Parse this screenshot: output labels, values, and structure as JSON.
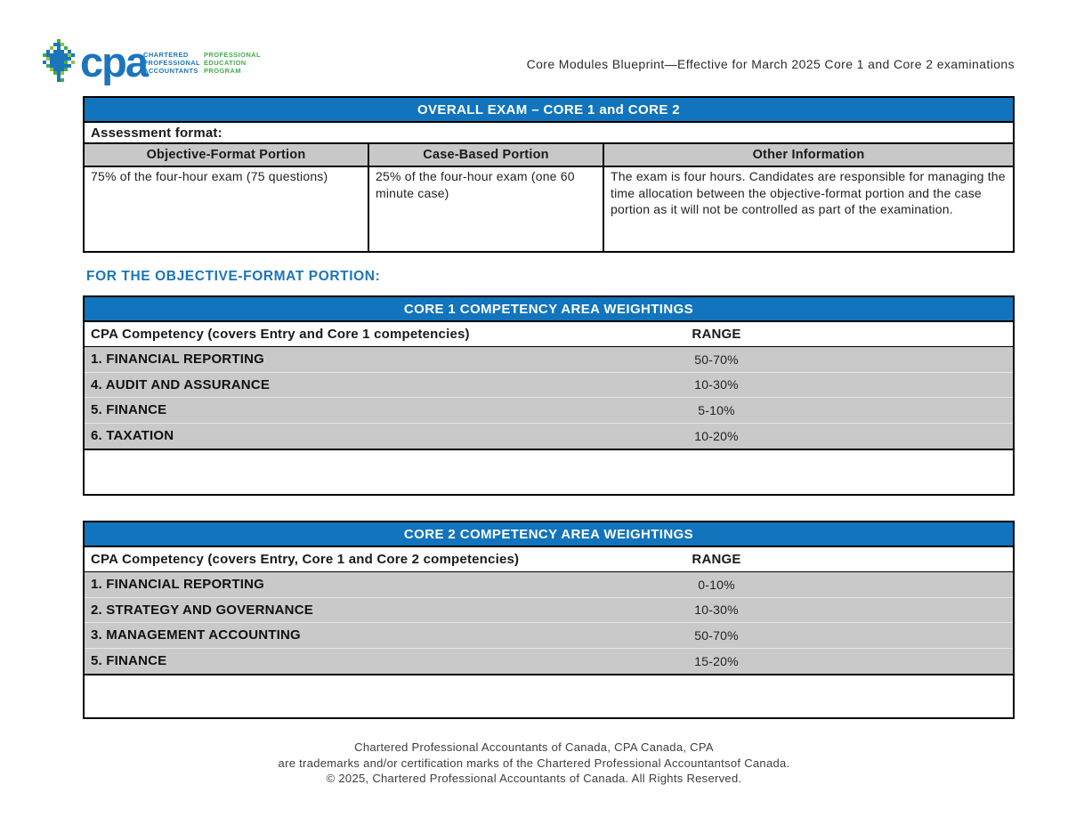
{
  "colors": {
    "header_blue": "#1174bc",
    "heading_text_blue": "#1b75bc",
    "row_gray": "#c9c9c9",
    "column_header_gray": "#c8c8c8",
    "logo_blue": "#1b75bc",
    "logo_green": "#3fae49"
  },
  "logo": {
    "acronym": "cpa",
    "blue_lines": "CHARTERED\nPROFESSIONAL\nACCOUNTANTS",
    "green_lines": "PROFESSIONAL\nEDUCATION\nPROGRAM"
  },
  "header": {
    "title": "Core Modules Blueprint—Effective for March 2025 Core 1 and Core 2 examinations"
  },
  "overall_table": {
    "title": "OVERALL EXAM – CORE 1 and CORE 2",
    "subtitle": "Assessment format:",
    "columns": [
      "Objective-Format Portion",
      "Case-Based Portion",
      "Other Information"
    ],
    "cells": [
      "75% of the four-hour exam (75 questions)",
      "25% of the four-hour exam (one 60 minute case)",
      "The exam is four hours. Candidates are responsible for managing the time allocation between the objective-format portion and the case portion as it will not be controlled as part of the examination."
    ]
  },
  "section_heading": "FOR THE OBJECTIVE-FORMAT PORTION:",
  "core1_table": {
    "title": "CORE 1 COMPETENCY AREA WEIGHTINGS",
    "header": {
      "competency": "CPA Competency (covers Entry and Core 1 competencies)",
      "range": "RANGE"
    },
    "rows": [
      {
        "competency": "1. FINANCIAL REPORTING",
        "range": "50-70%"
      },
      {
        "competency": "4. AUDIT AND ASSURANCE",
        "range": "10-30%"
      },
      {
        "competency": "5. FINANCE",
        "range": "5-10%"
      },
      {
        "competency": "6. TAXATION",
        "range": "10-20%"
      }
    ]
  },
  "core2_table": {
    "title": "CORE 2 COMPETENCY AREA WEIGHTINGS",
    "header": {
      "competency": "CPA Competency (covers Entry, Core 1 and Core 2 competencies)",
      "range": "RANGE"
    },
    "rows": [
      {
        "competency": "1. FINANCIAL REPORTING",
        "range": "0-10%"
      },
      {
        "competency": "2. STRATEGY AND GOVERNANCE",
        "range": "10-30%"
      },
      {
        "competency": "3. MANAGEMENT ACCOUNTING",
        "range": "50-70%"
      },
      {
        "competency": "5. FINANCE",
        "range": "15-20%"
      }
    ]
  },
  "footer": {
    "lines": [
      "Chartered Professional Accountants of Canada, CPA Canada, CPA",
      "are trademarks and/or certification marks of the Chartered Professional Accountantsof Canada.",
      "© 2025, Chartered Professional Accountants of Canada. All Rights Reserved."
    ]
  }
}
